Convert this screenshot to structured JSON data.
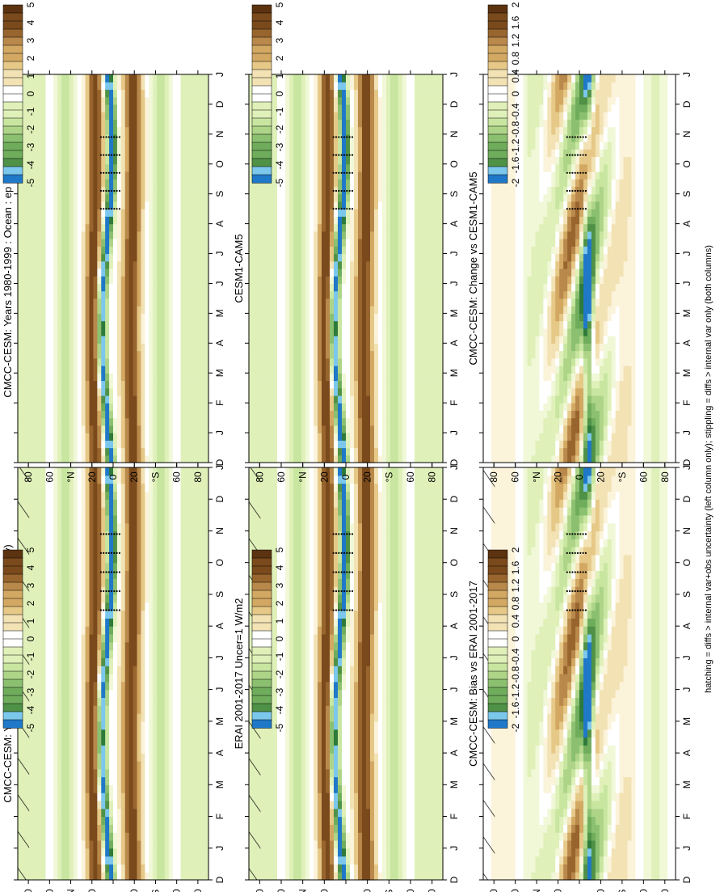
{
  "figure": {
    "footer": "hatching = diffs > internal var+obs uncertainty (left column only); stippling = diffs > internal var only (both columns)"
  },
  "axes": {
    "months": [
      "D",
      "J",
      "F",
      "M",
      "A",
      "M",
      "J",
      "J",
      "A",
      "S",
      "O",
      "N",
      "D",
      "J"
    ],
    "lat_labels": [
      "80",
      "60",
      "°N",
      "20",
      "0",
      "20",
      "°S",
      "60",
      "80"
    ]
  },
  "scales": {
    "abs": [
      "5",
      "4",
      "3",
      "2",
      "1",
      "0",
      "-1",
      "-2",
      "-3",
      "-4",
      "-5"
    ],
    "diff": [
      "2",
      "1.6",
      "1.2",
      "0.8",
      "0.4",
      "0",
      "-0.4",
      "-0.8",
      "-1.2",
      "-1.6",
      "-2"
    ]
  },
  "colors": {
    "brown": [
      "#5c3310",
      "#7a4a1c",
      "#98652e",
      "#b9884b",
      "#d2a863",
      "#e6c887",
      "#f2e2b4",
      "#fbf3da"
    ],
    "white": "#ffffff",
    "green": [
      "#f0f8d8",
      "#dff0b9",
      "#c8e6a0",
      "#aed488",
      "#8cc071",
      "#6fad5c",
      "#4f9147",
      "#2e7a3a"
    ],
    "blue_light": "#7cc7ec",
    "blue_dark": "#1f78c8"
  },
  "chart_data": [
    {
      "panel": "top-left",
      "type": "heatmap",
      "title": "CMCC-CESM: Years 1980-1999 : Ocean : ep (mm/day)",
      "x": [
        "D",
        "J",
        "F",
        "M",
        "A",
        "M",
        "J",
        "J",
        "A",
        "S",
        "O",
        "N",
        "D",
        "J"
      ],
      "ylabel_ticks": [
        "80",
        "60",
        "°N",
        "20",
        "0",
        "20",
        "°S",
        "60",
        "80"
      ],
      "colorbar": [
        "5",
        "4",
        "3",
        "2",
        "1",
        "0",
        "-1",
        "-2",
        "-3",
        "-4",
        "-5"
      ],
      "hatched": true,
      "stippled": true
    },
    {
      "panel": "top-right",
      "type": "heatmap",
      "title": "CMCC-CESM: Years 1980-1999 : Ocean : ep (mm/day)",
      "x": [
        "D",
        "J",
        "F",
        "M",
        "A",
        "M",
        "J",
        "J",
        "A",
        "S",
        "O",
        "N",
        "D",
        "J"
      ],
      "ylabel_ticks": [
        "80",
        "60",
        "°N",
        "20",
        "0",
        "20",
        "°S",
        "60",
        "80"
      ],
      "colorbar": [
        "5",
        "4",
        "3",
        "2",
        "1",
        "0",
        "-1",
        "-2",
        "-3",
        "-4",
        "-5"
      ],
      "hatched": false,
      "stippled": true
    },
    {
      "panel": "middle-left",
      "type": "heatmap",
      "title": "ERAI 2001-2017 Uncer=1 W/m2",
      "x": [
        "D",
        "J",
        "F",
        "M",
        "A",
        "M",
        "J",
        "J",
        "A",
        "S",
        "O",
        "N",
        "D",
        "J"
      ],
      "ylabel_ticks": [
        "80",
        "60",
        "°N",
        "20",
        "0",
        "20",
        "°S",
        "60",
        "80"
      ],
      "colorbar": [
        "5",
        "4",
        "3",
        "2",
        "1",
        "0",
        "-1",
        "-2",
        "-3",
        "-4",
        "-5"
      ],
      "hatched": true,
      "stippled": true
    },
    {
      "panel": "middle-right",
      "type": "heatmap",
      "title": "CESM1-CAM5",
      "x": [
        "D",
        "J",
        "F",
        "M",
        "A",
        "M",
        "J",
        "J",
        "A",
        "S",
        "O",
        "N",
        "D",
        "J"
      ],
      "ylabel_ticks": [
        "80",
        "60",
        "°N",
        "20",
        "0",
        "20",
        "°S",
        "60",
        "80"
      ],
      "colorbar": [
        "5",
        "4",
        "3",
        "2",
        "1",
        "0",
        "-1",
        "-2",
        "-3",
        "-4",
        "-5"
      ],
      "hatched": false,
      "stippled": true
    },
    {
      "panel": "bottom-left",
      "type": "heatmap",
      "title": "CMCC-CESM: Bias vs ERAI 2001-2017",
      "x": [
        "D",
        "J",
        "F",
        "M",
        "A",
        "M",
        "J",
        "J",
        "A",
        "S",
        "O",
        "N",
        "D",
        "J"
      ],
      "ylabel_ticks": [
        "80",
        "60",
        "°N",
        "20",
        "0",
        "20",
        "°S",
        "60",
        "80"
      ],
      "colorbar": [
        "2",
        "1.6",
        "1.2",
        "0.8",
        "0.4",
        "0",
        "-0.4",
        "-0.8",
        "-1.2",
        "-1.6",
        "-2"
      ],
      "hatched": true,
      "stippled": true
    },
    {
      "panel": "bottom-right",
      "type": "heatmap",
      "title": "CMCC-CESM: Change vs CESM1-CAM5",
      "x": [
        "D",
        "J",
        "F",
        "M",
        "A",
        "M",
        "J",
        "J",
        "A",
        "S",
        "O",
        "N",
        "D",
        "J"
      ],
      "ylabel_ticks": [
        "80",
        "60",
        "°N",
        "20",
        "0",
        "20",
        "°S",
        "60",
        "80"
      ],
      "colorbar": [
        "2",
        "1.6",
        "1.2",
        "0.8",
        "0.4",
        "0",
        "-0.4",
        "-0.8",
        "-1.2",
        "-1.6",
        "-2"
      ],
      "hatched": false,
      "stippled": true
    }
  ]
}
